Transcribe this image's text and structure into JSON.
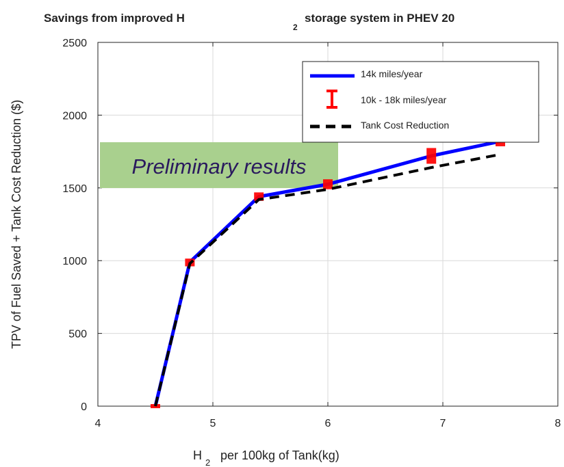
{
  "chart_data": {
    "type": "line",
    "title": {
      "part1": "Savings from improved H",
      "sub": "2",
      "part2": "storage system in PHEV 20"
    },
    "xlabel": {
      "part1": "H",
      "sub": "2",
      "part2": "per 100kg of Tank(kg)"
    },
    "ylabel": "TPV of Fuel Saved + Tank Cost Reduction ($)",
    "xlim": [
      4,
      8
    ],
    "ylim": [
      0,
      2500
    ],
    "xticks": [
      4,
      5,
      6,
      7,
      8
    ],
    "yticks": [
      0,
      500,
      1000,
      1500,
      2000,
      2500
    ],
    "grid": true,
    "legend_position": "top-right",
    "annotation": "Preliminary results",
    "series": [
      {
        "name": "14k miles/year",
        "style": "solid",
        "color": "#0000ff",
        "x": [
          4.5,
          4.8,
          5.4,
          6.0,
          6.9,
          7.5
        ],
        "y": [
          0,
          990,
          1440,
          1525,
          1720,
          1820
        ]
      },
      {
        "name": "10k - 18k miles/year",
        "style": "errorbar",
        "color": "#ff0000",
        "x": [
          4.5,
          4.8,
          5.4,
          6.0,
          6.9,
          7.5
        ],
        "y_low": [
          0,
          975,
          1425,
          1505,
          1680,
          1800
        ],
        "y_high": [
          0,
          1000,
          1455,
          1545,
          1760,
          1840
        ]
      },
      {
        "name": "Tank Cost Reduction",
        "style": "dashed",
        "color": "#000000",
        "x": [
          4.5,
          4.8,
          5.4,
          6.0,
          6.9,
          7.5
        ],
        "y": [
          0,
          980,
          1420,
          1490,
          1640,
          1730
        ]
      }
    ]
  },
  "colors": {
    "annotation_bg": "#a9d08e",
    "annotation_text": "#2a1a5e",
    "grid": "#d9d9d9"
  }
}
